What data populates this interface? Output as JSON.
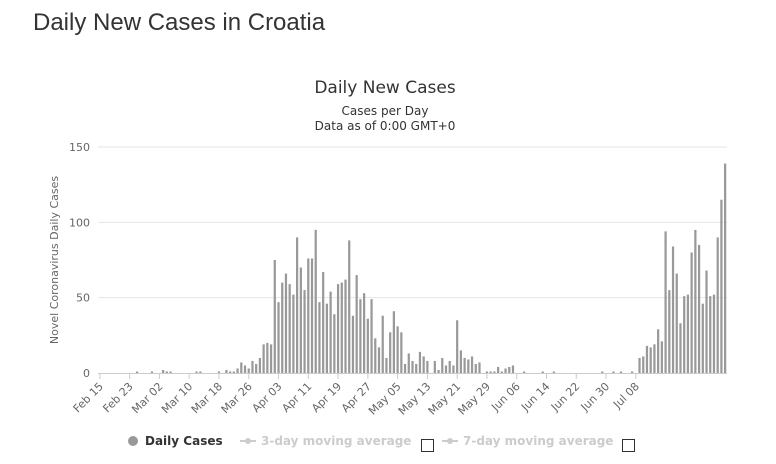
{
  "page": {
    "title": "Daily New Cases in Croatia"
  },
  "legend": {
    "items": [
      {
        "label": "Daily Cases",
        "active": true
      },
      {
        "label": "3-day moving average",
        "active": false
      },
      {
        "label": "7-day moving average",
        "active": false
      }
    ]
  },
  "colors": {
    "bar": "#999999",
    "grid": "#e6e6e6",
    "axis": "#cccccc",
    "text": "#333333",
    "muted": "#666666"
  },
  "chart_data": {
    "type": "bar",
    "title": "Daily New Cases",
    "subtitle_line1": "Cases per Day",
    "subtitle_line2": "Data as of 0:00 GMT+0",
    "xlabel": "",
    "ylabel": "Novel Coronavirus Daily Cases",
    "ylim": [
      0,
      150
    ],
    "yticks": [
      0,
      50,
      100,
      150
    ],
    "grid": true,
    "legend_position": "bottom",
    "tick_labels": [
      "Feb 15",
      "Feb 23",
      "Mar 02",
      "Mar 10",
      "Mar 18",
      "Mar 26",
      "Apr 03",
      "Apr 11",
      "Apr 19",
      "Apr 27",
      "May 05",
      "May 13",
      "May 21",
      "May 29",
      "Jun 06",
      "Jun 14",
      "Jun 22",
      "Jun 30",
      "Jul 08"
    ],
    "tick_index": [
      0,
      8,
      16,
      24,
      32,
      40,
      48,
      56,
      64,
      72,
      80,
      88,
      96,
      104,
      112,
      120,
      128,
      136,
      144
    ],
    "categories_start": "Feb 15",
    "values": [
      0,
      0,
      0,
      0,
      0,
      0,
      0,
      0,
      0,
      0,
      1,
      0,
      0,
      0,
      1,
      0,
      0,
      2,
      1,
      1,
      0,
      0,
      0,
      0,
      0,
      0,
      1,
      1,
      0,
      0,
      0,
      0,
      1,
      0,
      2,
      1,
      1,
      3,
      7,
      5,
      3,
      8,
      6,
      10,
      19,
      20,
      19,
      75,
      47,
      60,
      66,
      59,
      52,
      90,
      70,
      55,
      76,
      76,
      95,
      47,
      67,
      46,
      54,
      39,
      59,
      60,
      62,
      88,
      38,
      65,
      49,
      53,
      36,
      49,
      23,
      17,
      38,
      10,
      27,
      41,
      31,
      27,
      6,
      13,
      8,
      6,
      14,
      11,
      8,
      0,
      8,
      2,
      10,
      5,
      8,
      5,
      35,
      15,
      10,
      9,
      11,
      6,
      7,
      0,
      1,
      1,
      1,
      4,
      1,
      3,
      4,
      5,
      0,
      0,
      1,
      0,
      0,
      0,
      0,
      1,
      0,
      0,
      1,
      0,
      0,
      0,
      0,
      0,
      0,
      0,
      0,
      0,
      0,
      0,
      0,
      1,
      0,
      0,
      1,
      0,
      1,
      0,
      0,
      1,
      0,
      10,
      11,
      18,
      17,
      19,
      29,
      21,
      94,
      55,
      84,
      66,
      33,
      51,
      52,
      80,
      95,
      85,
      46,
      68,
      51,
      52,
      90,
      115,
      139
    ]
  }
}
